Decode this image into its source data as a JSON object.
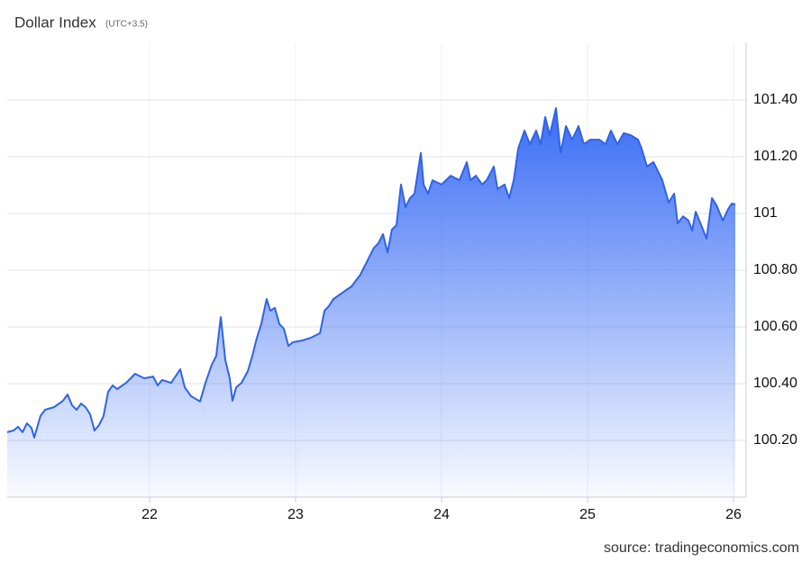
{
  "chart_data": {
    "type": "area",
    "title": "Dollar Index",
    "subtitle": "(UTC+3.5)",
    "source": "source: tradingeconomics.com",
    "color": "#2f63e8",
    "fill_color": "#3a6df5",
    "grid": true,
    "xlim": [
      21.025,
      26.086
    ],
    "xticks": [
      22,
      23,
      24,
      25,
      26
    ],
    "ylim": [
      100.0,
      101.6
    ],
    "yticks": [
      {
        "value": 100.2,
        "label": "100.20"
      },
      {
        "value": 100.4,
        "label": "100.40"
      },
      {
        "value": 100.6,
        "label": "100.60"
      },
      {
        "value": 100.8,
        "label": "100.80"
      },
      101,
      {
        "value": 101.2,
        "label": "101.20"
      },
      {
        "value": 101.4,
        "label": "101.40"
      }
    ],
    "x": [
      21.025,
      21.068,
      21.099,
      21.13,
      21.16,
      21.191,
      21.21,
      21.253,
      21.284,
      21.346,
      21.407,
      21.438,
      21.469,
      21.5,
      21.531,
      21.562,
      21.593,
      21.623,
      21.654,
      21.685,
      21.716,
      21.747,
      21.778,
      21.84,
      21.901,
      21.963,
      22.025,
      22.056,
      22.086,
      22.148,
      22.21,
      22.241,
      22.284,
      22.346,
      22.383,
      22.426,
      22.457,
      22.488,
      22.519,
      22.549,
      22.568,
      22.593,
      22.63,
      22.673,
      22.704,
      22.735,
      22.765,
      22.802,
      22.827,
      22.858,
      22.889,
      22.92,
      22.951,
      22.981,
      23.043,
      23.105,
      23.167,
      23.198,
      23.228,
      23.259,
      23.321,
      23.383,
      23.444,
      23.475,
      23.506,
      23.537,
      23.568,
      23.599,
      23.63,
      23.66,
      23.691,
      23.722,
      23.753,
      23.784,
      23.815,
      23.858,
      23.877,
      23.907,
      23.938,
      24.0,
      24.062,
      24.123,
      24.173,
      24.198,
      24.235,
      24.278,
      24.309,
      24.358,
      24.383,
      24.432,
      24.463,
      24.494,
      24.525,
      24.568,
      24.605,
      24.648,
      24.679,
      24.71,
      24.741,
      24.784,
      24.815,
      24.852,
      24.895,
      24.938,
      24.975,
      25.019,
      25.08,
      25.123,
      25.16,
      25.204,
      25.247,
      25.296,
      25.346,
      25.37,
      25.407,
      25.451,
      25.512,
      25.556,
      25.593,
      25.617,
      25.654,
      25.691,
      25.716,
      25.741,
      25.778,
      25.815,
      25.852,
      25.883,
      25.926,
      25.963,
      25.988,
      26.012
    ],
    "values": [
      100.229,
      100.235,
      100.248,
      100.229,
      100.26,
      100.244,
      100.21,
      100.286,
      100.308,
      100.317,
      100.34,
      100.362,
      100.324,
      100.308,
      100.33,
      100.317,
      100.292,
      100.235,
      100.254,
      100.286,
      100.371,
      100.394,
      100.381,
      100.403,
      100.435,
      100.419,
      100.425,
      100.394,
      100.413,
      100.403,
      100.451,
      100.387,
      100.356,
      100.337,
      100.403,
      100.467,
      100.498,
      100.635,
      100.483,
      100.419,
      100.34,
      100.387,
      100.403,
      100.444,
      100.498,
      100.562,
      100.61,
      100.698,
      100.657,
      100.667,
      100.61,
      100.594,
      100.533,
      100.546,
      100.552,
      100.562,
      100.578,
      100.657,
      100.673,
      100.698,
      100.721,
      100.743,
      100.784,
      100.816,
      100.848,
      100.879,
      100.895,
      100.927,
      100.863,
      100.943,
      100.959,
      101.102,
      101.022,
      101.054,
      101.07,
      101.213,
      101.102,
      101.07,
      101.117,
      101.102,
      101.133,
      101.117,
      101.181,
      101.117,
      101.133,
      101.102,
      101.117,
      101.165,
      101.086,
      101.102,
      101.054,
      101.117,
      101.229,
      101.292,
      101.244,
      101.292,
      101.244,
      101.34,
      101.276,
      101.371,
      101.213,
      101.308,
      101.26,
      101.308,
      101.244,
      101.26,
      101.26,
      101.244,
      101.292,
      101.244,
      101.283,
      101.276,
      101.26,
      101.229,
      101.165,
      101.181,
      101.117,
      101.038,
      101.07,
      100.965,
      100.99,
      100.975,
      100.94,
      101.006,
      100.959,
      100.911,
      101.054,
      101.029,
      100.975,
      101.016,
      101.035,
      101.032
    ]
  }
}
